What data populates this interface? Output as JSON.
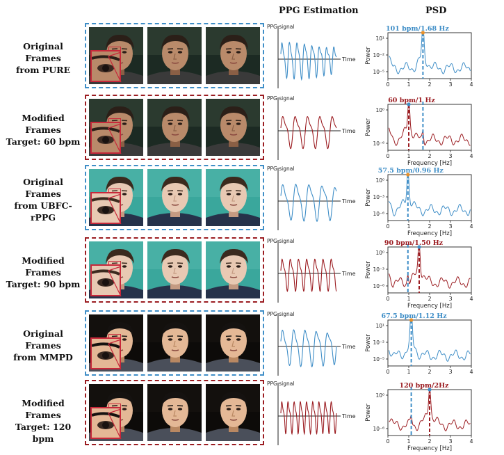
{
  "headers": {
    "ppg": "PPG Estimation",
    "psd": "PSD"
  },
  "colors": {
    "blue": "#3f8ec7",
    "red": "#9b1c21",
    "marker": "#e8902a"
  },
  "rows": [
    {
      "label_lines": [
        "Original",
        "Frames",
        "from PURE"
      ],
      "color": "blue",
      "face": "pure",
      "peak_label": "101 bpm/1.68 Hz",
      "peak_hz": 1.68,
      "ref_hz": null,
      "ticks": [
        "10¹",
        "10⁻²",
        "10⁻⁵"
      ],
      "show_xlabel": false,
      "cycles": 7.5
    },
    {
      "label_lines": [
        "Modified",
        "Frames",
        "Target: 60 bpm"
      ],
      "color": "red",
      "face": "pure",
      "peak_label": "60 bpm/1 Hz",
      "peak_hz": 1.0,
      "ref_hz": 1.68,
      "ticks": [
        "10⁰",
        "10⁻⁶"
      ],
      "show_xlabel": true,
      "cycles": 4.5
    },
    {
      "label_lines": [
        "Original",
        "Frames",
        "from UBFC-",
        "rPPG"
      ],
      "color": "blue",
      "face": "ubfc",
      "peak_label": "57.5 bpm/0.96 Hz",
      "peak_hz": 0.96,
      "ref_hz": null,
      "ticks": [
        "10⁰",
        "10⁻³",
        "10⁻⁶"
      ],
      "show_xlabel": true,
      "cycles": 4.3
    },
    {
      "label_lines": [
        "Modified",
        "Frames",
        "Target: 90 bpm"
      ],
      "color": "red",
      "face": "ubfc",
      "peak_label": "90 bpm/1.50 Hz",
      "peak_hz": 1.5,
      "ref_hz": 0.96,
      "ticks": [
        "10⁰",
        "10⁻³",
        "10⁻⁶"
      ],
      "show_xlabel": true,
      "cycles": 6.8
    },
    {
      "label_lines": [
        "Original",
        "Frames",
        "from MMPD"
      ],
      "color": "blue",
      "face": "mmpd",
      "peak_label": "67.5 bpm/1.12 Hz",
      "peak_hz": 1.12,
      "ref_hz": null,
      "ticks": [
        "10¹",
        "10⁻²",
        "10⁻⁵"
      ],
      "show_xlabel": false,
      "cycles": 5.0
    },
    {
      "label_lines": [
        "Modified",
        "Frames",
        "Target: 120 bpm"
      ],
      "color": "red",
      "face": "mmpd",
      "peak_label": "120 bpm/2Hz",
      "peak_hz": 2.0,
      "ref_hz": 1.12,
      "ticks": [
        "10⁰",
        "10⁻⁶"
      ],
      "show_xlabel": true,
      "cycles": 9.0
    }
  ],
  "ppg": {
    "ylabel": "PPG signal",
    "xlabel": "Time"
  },
  "psd": {
    "ylabel": "Power",
    "xlabel": "Frequency [Hz]",
    "xticks": [
      "0",
      "1",
      "2",
      "3",
      "4"
    ],
    "xlim": [
      0,
      4
    ]
  }
}
